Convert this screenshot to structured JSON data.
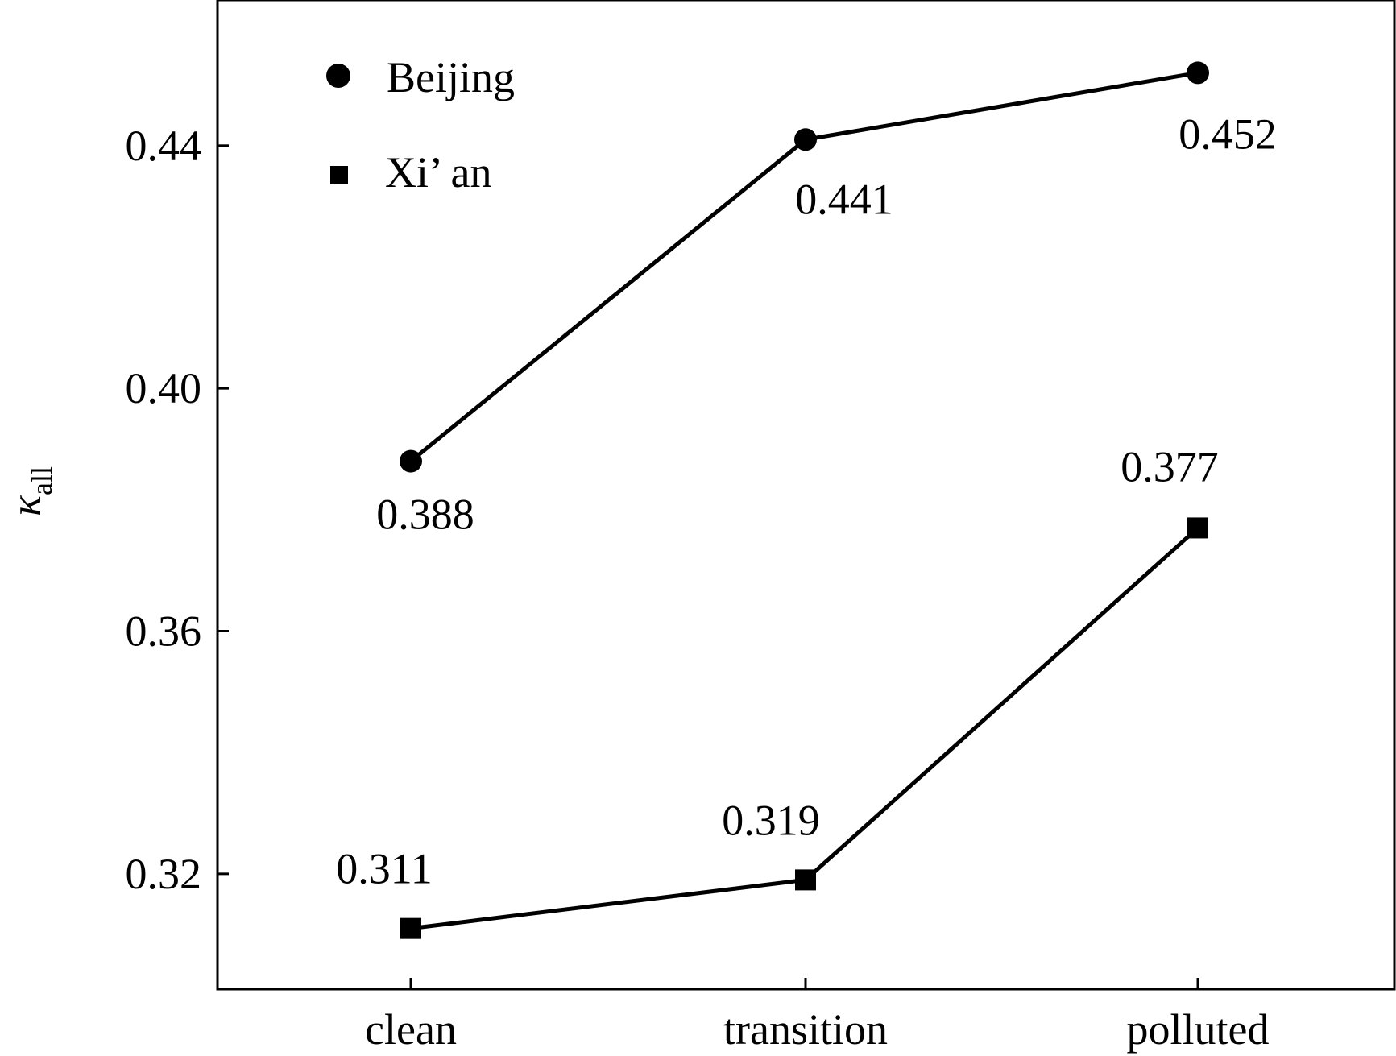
{
  "chart_data": {
    "type": "line",
    "title": "",
    "xlabel": "",
    "ylabel": "κ",
    "ylabel_subscript": "all",
    "categories": [
      "clean",
      "transition",
      "polluted"
    ],
    "yticks": [
      "0.32",
      "0.36",
      "0.40",
      "0.44"
    ],
    "ylim": [
      0.301,
      0.464
    ],
    "grid": false,
    "legend_position": "top-left",
    "series": [
      {
        "name": "Beijing",
        "marker": "circle",
        "color": "#000000",
        "values": [
          0.388,
          0.441,
          0.452
        ],
        "labels": [
          "0.388",
          "0.441",
          "0.452"
        ]
      },
      {
        "name": "Xi’ an",
        "marker": "square",
        "color": "#000000",
        "values": [
          0.311,
          0.319,
          0.377
        ],
        "labels": [
          "0.311",
          "0.319",
          "0.377"
        ]
      }
    ]
  }
}
